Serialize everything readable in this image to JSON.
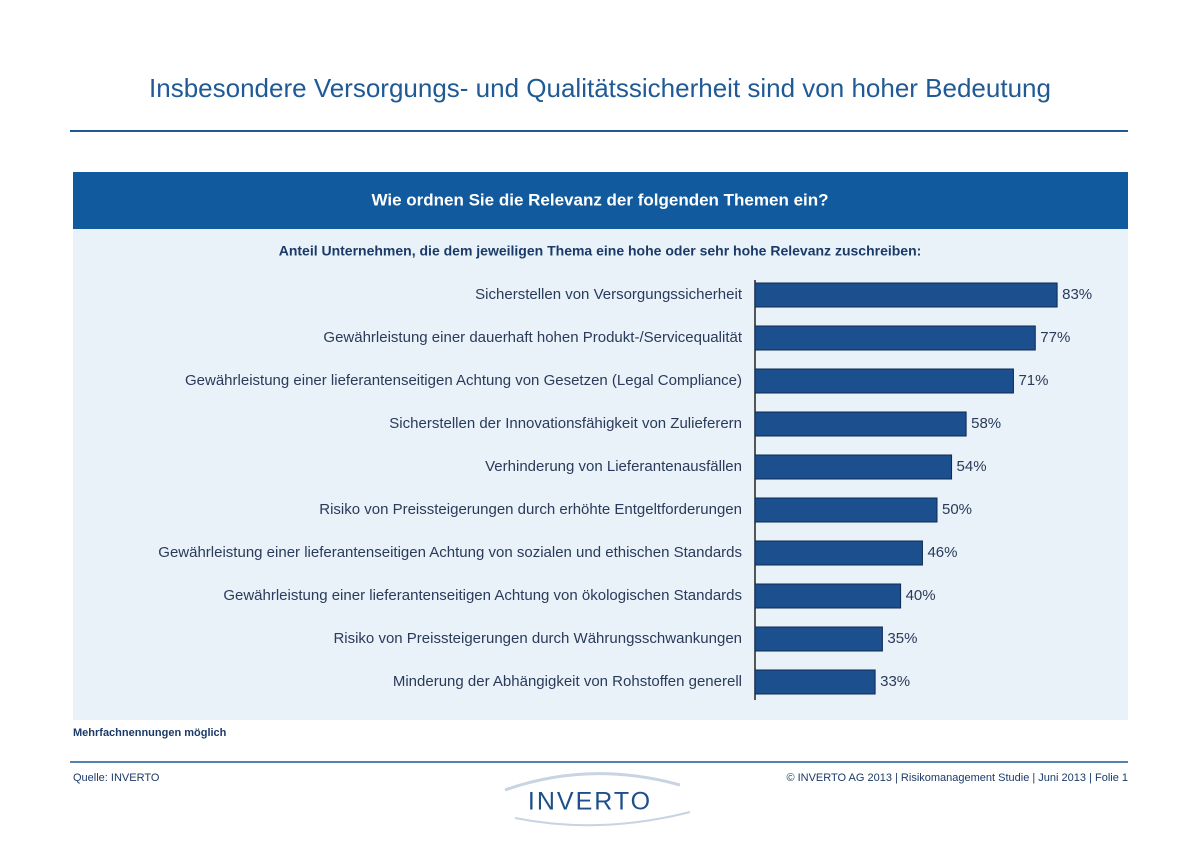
{
  "chart_data": {
    "type": "bar",
    "orientation": "horizontal",
    "title": "Insbesondere Versorgungs- und Qualitätssicherheit sind von hoher Bedeutung",
    "question": "Wie ordnen Sie die Relevanz der folgenden Themen ein?",
    "subtitle": "Anteil Unternehmen, die dem jeweiligen Thema eine hohe oder sehr hohe Relevanz zuschreiben:",
    "categories": [
      "Sicherstellen von Versorgungssicherheit",
      "Gewährleistung einer dauerhaft hohen Produkt-/Servicequalität",
      "Gewährleistung einer lieferantenseitigen Achtung von Gesetzen (Legal Compliance)",
      "Sicherstellen der Innovationsfähigkeit von Zulieferern",
      "Verhinderung von Lieferantenausfällen",
      "Risiko von Preissteigerungen durch erhöhte Entgeltforderungen",
      "Gewährleistung einer lieferantenseitigen Achtung von sozialen und ethischen Standards",
      "Gewährleistung einer lieferantenseitigen Achtung von ökologischen Standards",
      "Risiko von Preissteigerungen durch Währungsschwankungen",
      "Minderung der Abhängigkeit von Rohstoffen generell"
    ],
    "values": [
      83,
      77,
      71,
      58,
      54,
      50,
      46,
      40,
      35,
      33
    ],
    "value_labels": [
      "83%",
      "77%",
      "71%",
      "58%",
      "54%",
      "50%",
      "46%",
      "40%",
      "35%",
      "33%"
    ],
    "color": "#1b4f8e",
    "note": "Mehrfachnennungen möglich",
    "source": "Quelle: INVERTO",
    "footer": "© INVERTO AG 2013 | Risikomanagement Studie | Juni 2013 | Folie 1",
    "logo": "INVERTO"
  }
}
